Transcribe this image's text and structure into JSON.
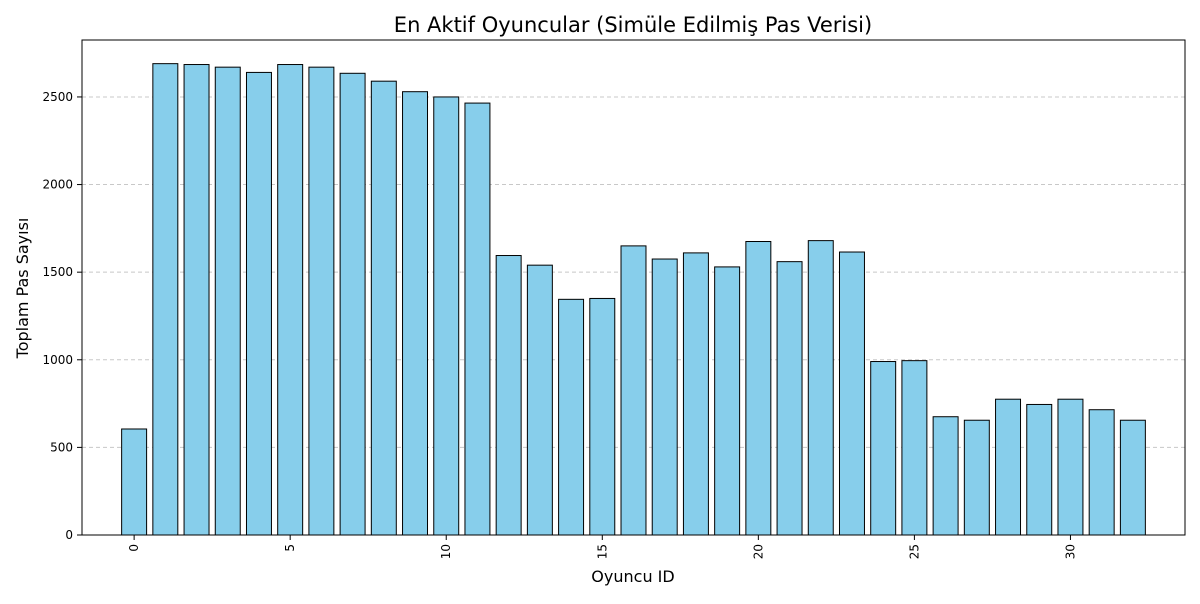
{
  "chart_data": {
    "type": "bar",
    "title": "En Aktif Oyuncular (Simüle Edilmiş Pas Verisi)",
    "xlabel": "Oyuncu ID",
    "ylabel": "Toplam Pas Sayısı",
    "x": [
      0,
      1,
      2,
      3,
      4,
      5,
      6,
      7,
      8,
      9,
      10,
      11,
      12,
      13,
      14,
      15,
      16,
      17,
      18,
      19,
      20,
      21,
      22,
      23,
      24,
      25,
      26,
      27,
      28,
      29,
      30,
      31,
      32
    ],
    "values": [
      605,
      2690,
      2685,
      2670,
      2640,
      2685,
      2670,
      2635,
      2590,
      2530,
      2500,
      2465,
      1595,
      1540,
      1345,
      1350,
      1650,
      1575,
      1610,
      1530,
      1675,
      1560,
      1680,
      1615,
      990,
      995,
      675,
      655,
      775,
      745,
      775,
      715,
      655
    ],
    "xticks": [
      0,
      5,
      10,
      15,
      20,
      25,
      30
    ],
    "yticks": [
      0,
      500,
      1000,
      1500,
      2000,
      2500
    ],
    "xlim": [
      -1.67,
      33.67
    ],
    "ylim": [
      0,
      2825
    ],
    "grid": "y-dashed",
    "colors": {
      "bar_fill": "#87CEEB",
      "bar_edge": "#000000",
      "grid": "#c8c8c8"
    }
  }
}
